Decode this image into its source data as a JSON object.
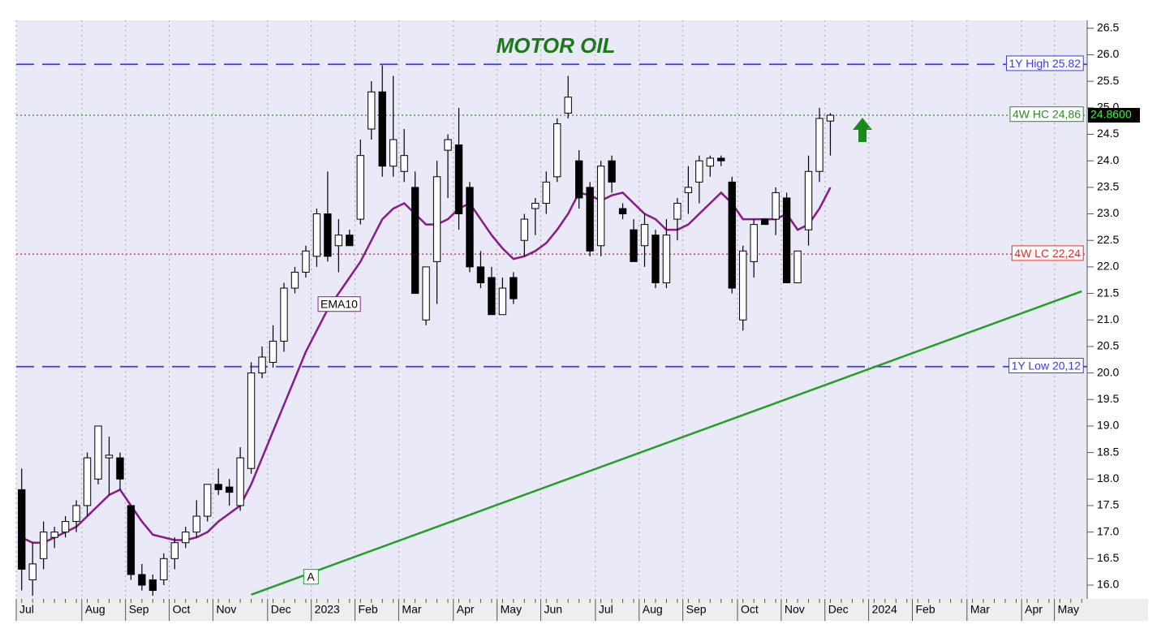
{
  "chart_data": {
    "type": "candlestick",
    "title": "MOTOR OIL",
    "categories": [
      "Jul",
      null,
      null,
      null,
      null,
      null,
      "Aug",
      null,
      null,
      null,
      "Sep",
      null,
      null,
      null,
      "Oct",
      null,
      null,
      null,
      "Nov",
      null,
      null,
      null,
      null,
      "Dec",
      null,
      null,
      null,
      "2023",
      null,
      null,
      null,
      "Feb",
      null,
      null,
      null,
      "Mar",
      null,
      null,
      null,
      null,
      "Apr",
      null,
      null,
      null,
      "May",
      null,
      null,
      null,
      "Jun",
      null,
      null,
      null,
      null,
      "Jul",
      null,
      null,
      null,
      "Aug",
      null,
      null,
      null,
      "Sep",
      null,
      null,
      null,
      null,
      "Oct",
      null,
      null,
      null,
      "Nov",
      null,
      null,
      null,
      "Dec",
      null,
      null,
      null,
      "2024",
      null,
      null,
      null,
      "Feb",
      null,
      null,
      null,
      null,
      "Mar",
      null,
      null,
      null,
      null,
      "Apr",
      null,
      null,
      "May",
      null,
      null
    ],
    "open": [
      17.8,
      16.1,
      16.5,
      16.9,
      17.0,
      17.2,
      17.5,
      18.0,
      18.4,
      18.4,
      17.5,
      16.2,
      16.1,
      16.1,
      16.5,
      16.8,
      17.0,
      17.3,
      17.9,
      17.85,
      17.5,
      18.2,
      20.0,
      20.2,
      20.6,
      21.6,
      21.9,
      22.2,
      23.0,
      22.4,
      22.6,
      22.9,
      24.6,
      25.3,
      23.9,
      23.8,
      23.5,
      21.0,
      22.1,
      24.2,
      24.3,
      23.5,
      22.0,
      21.8,
      21.1,
      21.8,
      22.5,
      23.1,
      23.2,
      23.7,
      24.9,
      24.0,
      23.5,
      22.4,
      24.0,
      23.1,
      22.7,
      22.4,
      22.6,
      21.7,
      22.9,
      23.4,
      23.6,
      23.9,
      24.05,
      23.6,
      21.0,
      22.1,
      22.9,
      22.9,
      23.3,
      21.7,
      22.7,
      23.8,
      24.75,
      null,
      null,
      null,
      null,
      null,
      null,
      null,
      null,
      null,
      null,
      null,
      null,
      null,
      null,
      null,
      null,
      null,
      null,
      null,
      null,
      null,
      null,
      null
    ],
    "high": [
      18.2,
      16.8,
      17.2,
      17.1,
      17.3,
      17.6,
      18.5,
      19.0,
      18.8,
      18.5,
      17.5,
      16.4,
      16.2,
      16.6,
      16.9,
      17.1,
      17.6,
      17.9,
      18.2,
      18.0,
      18.6,
      20.2,
      20.5,
      20.9,
      21.7,
      22.0,
      22.4,
      23.1,
      23.8,
      22.9,
      22.7,
      24.4,
      25.5,
      25.8,
      25.6,
      24.6,
      23.8,
      22.0,
      24.0,
      24.5,
      25.0,
      23.6,
      22.3,
      22.0,
      21.8,
      21.9,
      23.0,
      23.3,
      23.8,
      24.8,
      25.6,
      24.2,
      23.6,
      24.0,
      24.1,
      23.2,
      22.9,
      23.0,
      22.7,
      22.9,
      23.3,
      23.9,
      24.1,
      24.1,
      24.1,
      23.7,
      22.4,
      22.9,
      22.9,
      23.5,
      23.4,
      22.3,
      24.1,
      25.0,
      24.9,
      null,
      null,
      null,
      null,
      null,
      null,
      null,
      null,
      null,
      null,
      null,
      null,
      null,
      null,
      null,
      null,
      null,
      null,
      null,
      null,
      null,
      null,
      null
    ],
    "low": [
      15.9,
      15.8,
      16.3,
      16.7,
      16.9,
      17.0,
      17.3,
      17.9,
      17.7,
      17.8,
      16.1,
      15.9,
      15.8,
      16.0,
      16.3,
      16.7,
      16.9,
      17.2,
      17.7,
      17.5,
      17.4,
      18.1,
      19.9,
      20.1,
      20.4,
      21.5,
      21.8,
      22.0,
      22.1,
      21.9,
      22.4,
      22.8,
      24.4,
      23.7,
      23.7,
      23.6,
      21.5,
      20.9,
      21.3,
      23.3,
      22.7,
      21.9,
      21.6,
      21.1,
      21.1,
      21.3,
      22.2,
      22.6,
      23.0,
      23.6,
      24.8,
      23.1,
      22.2,
      22.2,
      23.4,
      22.9,
      22.1,
      22.0,
      21.6,
      21.6,
      22.5,
      23.0,
      23.2,
      23.7,
      23.9,
      21.5,
      20.8,
      21.8,
      22.8,
      22.6,
      21.7,
      21.7,
      22.4,
      23.6,
      24.1,
      null,
      null,
      null,
      null,
      null,
      null,
      null,
      null,
      null,
      null,
      null,
      null,
      null,
      null,
      null,
      null,
      null,
      null,
      null,
      null,
      null,
      null,
      null
    ],
    "close": [
      16.3,
      16.4,
      17.0,
      17.0,
      17.2,
      17.5,
      18.4,
      19.0,
      18.45,
      18.0,
      16.2,
      16.0,
      15.9,
      16.5,
      16.8,
      17.0,
      17.3,
      17.9,
      17.8,
      17.75,
      18.4,
      20.0,
      20.3,
      20.6,
      21.6,
      21.9,
      22.3,
      23.0,
      22.2,
      22.6,
      22.4,
      24.1,
      25.3,
      23.9,
      24.4,
      24.1,
      21.5,
      22.0,
      23.7,
      24.4,
      23.0,
      22.0,
      21.7,
      21.1,
      21.6,
      21.4,
      22.9,
      23.2,
      23.6,
      24.7,
      25.2,
      23.3,
      22.3,
      23.9,
      23.6,
      23.0,
      22.1,
      22.8,
      21.7,
      22.6,
      23.2,
      23.5,
      24.0,
      24.05,
      24.0,
      21.6,
      22.3,
      22.8,
      22.8,
      23.4,
      21.7,
      22.3,
      23.8,
      24.8,
      24.86,
      null,
      null,
      null,
      null,
      null,
      null,
      null,
      null,
      null,
      null,
      null,
      null,
      null,
      null,
      null,
      null,
      null,
      null,
      null,
      null,
      null,
      null,
      null
    ],
    "overlays": [
      {
        "name": "EMA10",
        "color": "#8a1a8a",
        "values": [
          16.9,
          16.8,
          16.8,
          16.9,
          17.0,
          17.1,
          17.3,
          17.5,
          17.7,
          17.8,
          17.5,
          17.2,
          16.95,
          16.9,
          16.85,
          16.85,
          16.9,
          17.0,
          17.2,
          17.35,
          17.5,
          17.9,
          18.4,
          18.9,
          19.4,
          19.9,
          20.4,
          20.8,
          21.2,
          21.5,
          21.8,
          22.1,
          22.5,
          22.9,
          23.1,
          23.2,
          23.0,
          22.8,
          22.8,
          22.9,
          23.1,
          23.2,
          22.9,
          22.6,
          22.35,
          22.15,
          22.2,
          22.3,
          22.45,
          22.7,
          23.0,
          23.4,
          23.35,
          23.25,
          23.35,
          23.4,
          23.2,
          23.0,
          22.9,
          22.7,
          22.7,
          22.8,
          23.0,
          23.2,
          23.4,
          23.2,
          22.9,
          22.9,
          22.9,
          22.9,
          23.0,
          22.7,
          22.8,
          23.1,
          23.5,
          null,
          null,
          null,
          null,
          null,
          null,
          null,
          null,
          null,
          null,
          null,
          null,
          null,
          null,
          null,
          null,
          null,
          null,
          null,
          null,
          null,
          null,
          null
        ]
      }
    ],
    "hlines": [
      {
        "label": "1Y High 25.82",
        "value": 25.82,
        "color": "#3a3aee",
        "style": "dashed"
      },
      {
        "label": "4W HC 24,86",
        "value": 24.86,
        "color": "#2a8a2a",
        "style": "dotted"
      },
      {
        "label": "4W LC 22,24",
        "value": 22.24,
        "color": "#e03030",
        "style": "dotted"
      },
      {
        "label": "1Y Low 20,12",
        "value": 20.12,
        "color": "#3a3aee",
        "style": "dashed"
      }
    ],
    "trendline": {
      "label": "A",
      "color": "#22a022",
      "points": [
        [
          21,
          15.82
        ],
        [
          97,
          21.54
        ]
      ]
    },
    "last_price": {
      "value": 24.86,
      "label": "24.8600"
    },
    "ylim": [
      15.74,
      26.65
    ],
    "yticks": [
      {
        "value": 16,
        "label": "16.0"
      },
      16.5,
      {
        "value": 17,
        "label": "17.0"
      },
      17.5,
      {
        "value": 18,
        "label": "18.0"
      },
      18.5,
      {
        "value": 19,
        "label": "19.0"
      },
      19.5,
      {
        "value": 20,
        "label": "20.0"
      },
      20.5,
      {
        "value": 21,
        "label": "21.0"
      },
      21.5,
      {
        "value": 22,
        "label": "22.0"
      },
      22.5,
      {
        "value": 23,
        "label": "23.0"
      },
      23.5,
      {
        "value": 24,
        "label": "24.0"
      },
      24.5,
      {
        "value": 25,
        "label": "25.0"
      },
      25.5,
      {
        "value": 26,
        "label": "26.0"
      },
      26.5
    ],
    "grid": "x"
  }
}
